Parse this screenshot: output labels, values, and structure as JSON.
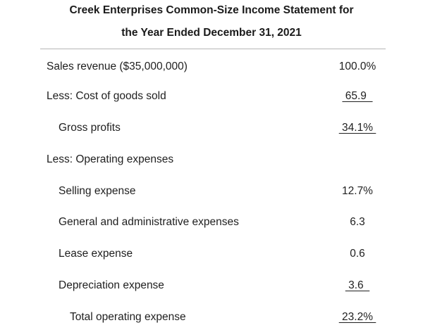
{
  "title": {
    "line1": "Creek Enterprises Common-Size Income Statement for",
    "line2": "the Year Ended December 31, 2021"
  },
  "rows": [
    {
      "label": "Sales revenue ($35,000,000)",
      "value": "100.0%"
    },
    {
      "label": "Less: Cost of goods sold",
      "value": " 65.9  "
    },
    {
      "label": "Gross profits",
      "value": " 34.1% "
    },
    {
      "label": "Less: Operating expenses",
      "value": ""
    },
    {
      "label": "Selling expense",
      "value": "12.7%"
    },
    {
      "label": "General and administrative expenses",
      "value": "6.3"
    },
    {
      "label": "Lease expense",
      "value": "0.6"
    },
    {
      "label": "Depreciation expense",
      "value": " 3.6  "
    },
    {
      "label": "Total operating expense",
      "value": " 23.2% "
    }
  ]
}
